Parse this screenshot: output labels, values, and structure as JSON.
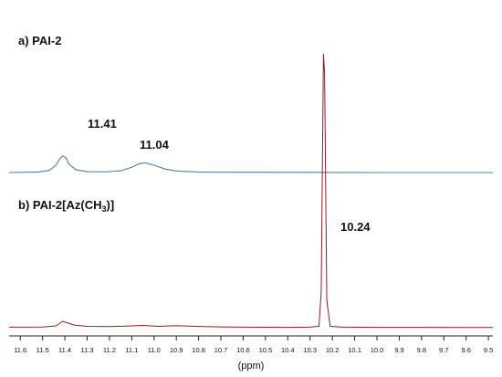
{
  "chart_data": {
    "type": "line",
    "xlabel": "(ppm)",
    "xlim": [
      11.65,
      9.48
    ],
    "x_reversed": true,
    "ticks": [
      "11.6",
      "11.5",
      "11.4",
      "11.3",
      "11.2",
      "11.1",
      "11.0",
      "10.9",
      "10.8",
      "10.7",
      "10.6",
      "10.5",
      "10.4",
      "10.3",
      "10.2",
      "10.1",
      "10.0",
      "9.9",
      "9.8",
      "9.7",
      "9.6",
      "9.5"
    ],
    "series": [
      {
        "name": "PAI-2",
        "label_prefix": "a) ",
        "color": "#4f7eab",
        "points": [
          [
            11.65,
            0
          ],
          [
            11.52,
            0.3
          ],
          [
            11.47,
            1.2
          ],
          [
            11.44,
            4.2
          ],
          [
            11.425,
            7.5
          ],
          [
            11.41,
            9.6
          ],
          [
            11.395,
            8.5
          ],
          [
            11.38,
            4.6
          ],
          [
            11.35,
            1.6
          ],
          [
            11.3,
            0.5
          ],
          [
            11.22,
            0.4
          ],
          [
            11.15,
            1.0
          ],
          [
            11.1,
            3.0
          ],
          [
            11.07,
            4.9
          ],
          [
            11.04,
            5.6
          ],
          [
            11.0,
            4.2
          ],
          [
            10.95,
            2.0
          ],
          [
            10.9,
            0.9
          ],
          [
            10.8,
            0.3
          ],
          [
            10.7,
            0.2
          ],
          [
            10.5,
            0.15
          ],
          [
            10.3,
            0.1
          ],
          [
            10.2,
            0.05
          ],
          [
            10.0,
            0
          ],
          [
            9.8,
            0
          ],
          [
            9.48,
            0
          ]
        ]
      },
      {
        "name": "PAI-2[Az(CH3)]",
        "label_prefix": "b) ",
        "name_base": "PAI-2[Az(CH",
        "name_sub": "3",
        "name_tail": ")]",
        "color": "#8b1f2a",
        "points": [
          [
            11.65,
            0.6
          ],
          [
            11.5,
            0.8
          ],
          [
            11.44,
            2.0
          ],
          [
            11.41,
            7.0
          ],
          [
            11.39,
            5.5
          ],
          [
            11.36,
            3.0
          ],
          [
            11.3,
            1.5
          ],
          [
            11.2,
            1.2
          ],
          [
            11.1,
            2.0
          ],
          [
            11.05,
            2.5
          ],
          [
            10.98,
            1.5
          ],
          [
            10.9,
            2.2
          ],
          [
            10.8,
            1.4
          ],
          [
            10.7,
            0.9
          ],
          [
            10.6,
            0.6
          ],
          [
            10.5,
            0.5
          ],
          [
            10.4,
            0.4
          ],
          [
            10.3,
            0.6
          ],
          [
            10.26,
            1.6
          ],
          [
            10.25,
            40
          ],
          [
            10.24,
            300
          ],
          [
            10.235,
            280
          ],
          [
            10.225,
            30
          ],
          [
            10.21,
            1.5
          ],
          [
            10.15,
            0.6
          ],
          [
            10.0,
            0.4
          ],
          [
            9.8,
            0.4
          ],
          [
            9.6,
            0.3
          ],
          [
            9.48,
            0.3
          ]
        ]
      }
    ],
    "peak_labels": [
      {
        "text": "11.41",
        "series": 0,
        "x": 11.41
      },
      {
        "text": "11.04",
        "series": 0,
        "x": 11.04
      },
      {
        "text": "10.24",
        "series": 1,
        "x": 10.24
      }
    ]
  }
}
